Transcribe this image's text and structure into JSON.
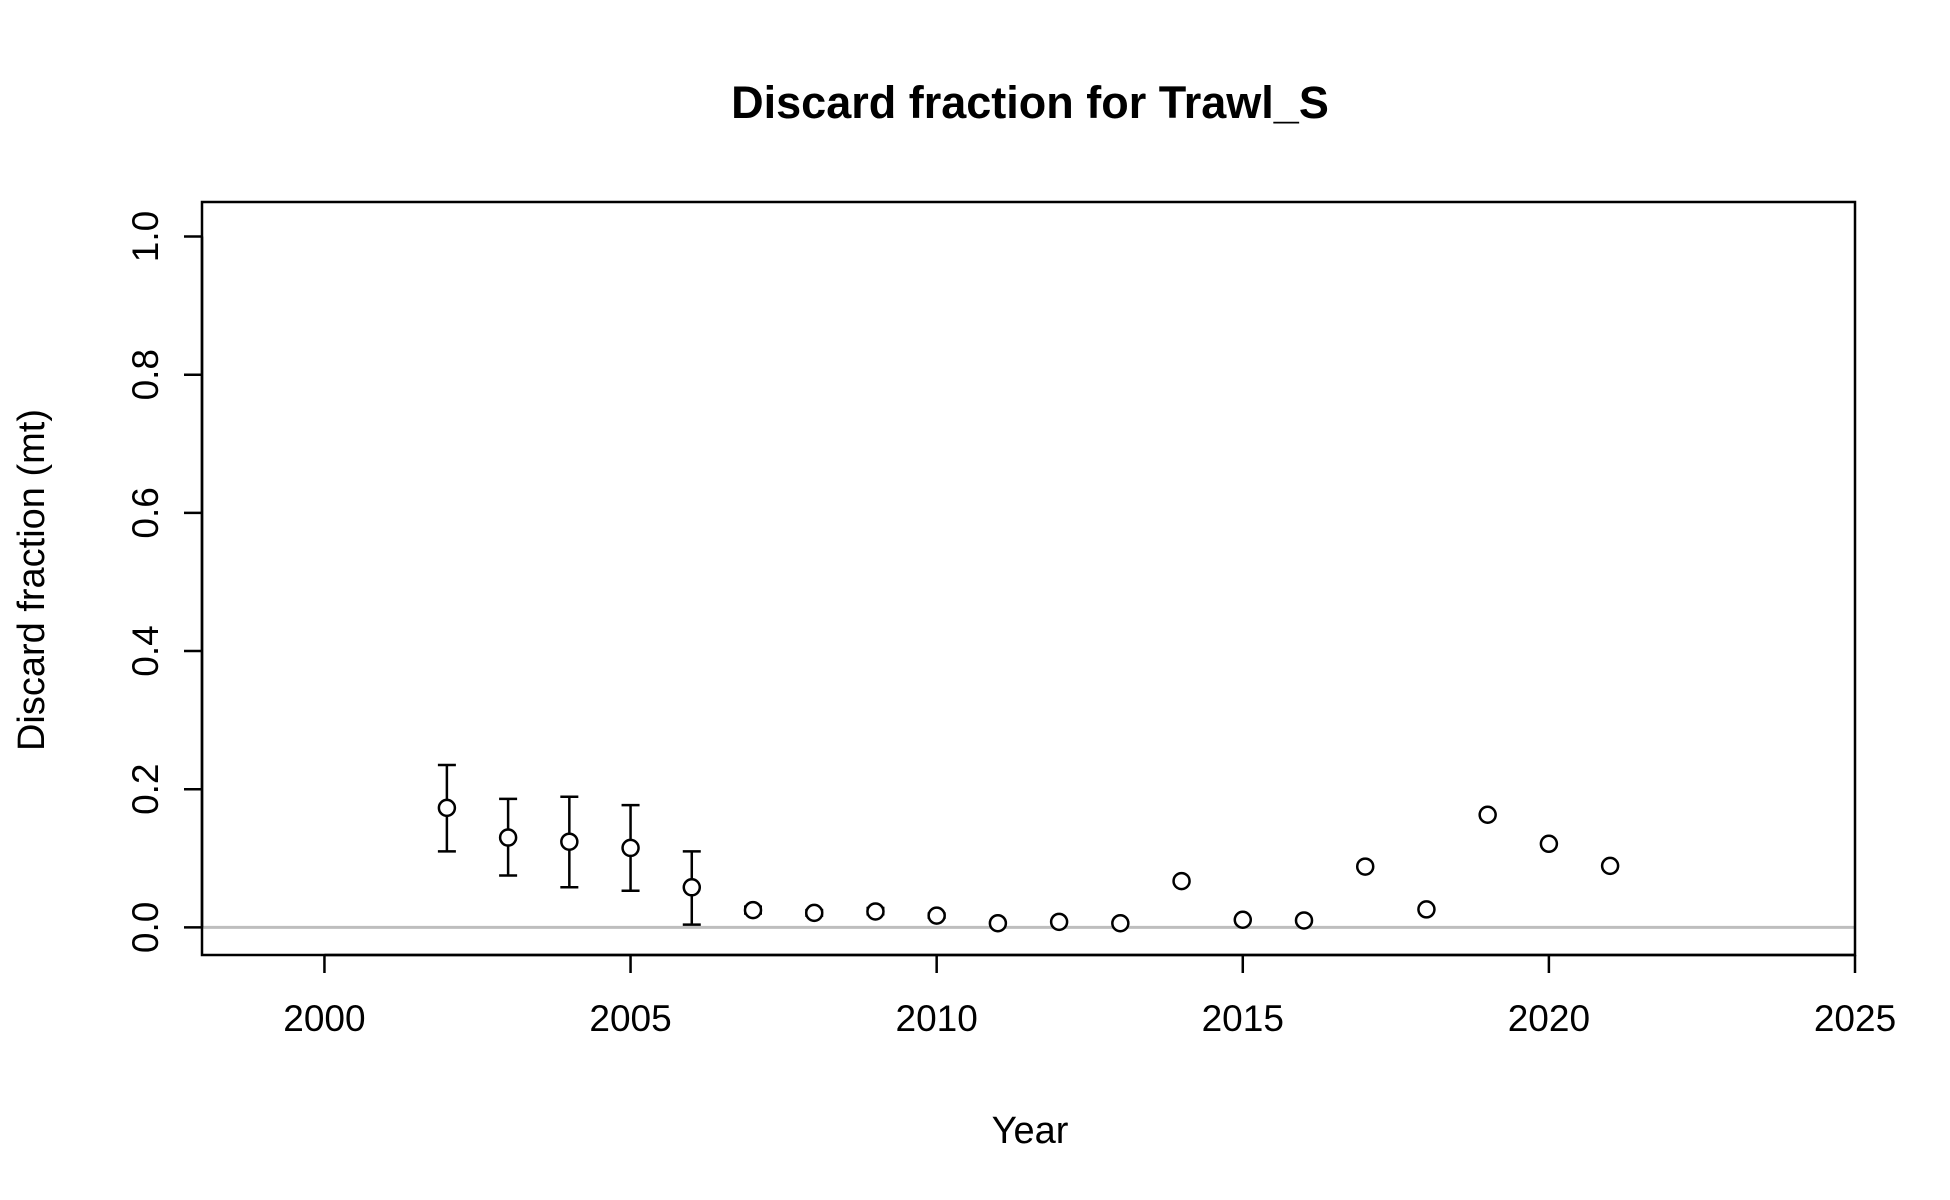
{
  "chart_data": {
    "type": "scatter",
    "title": "Discard fraction for Trawl_S",
    "xlabel": "Year",
    "ylabel": "Discard fraction (mt)",
    "xlim": [
      1998,
      2025
    ],
    "ylim": [
      -0.04,
      1.05
    ],
    "xticks": [
      2000,
      2005,
      2010,
      2015,
      2020,
      2025
    ],
    "yticks": [
      0.0,
      0.2,
      0.4,
      0.6,
      0.8,
      1.0
    ],
    "xtick_labels": [
      "2000",
      "2005",
      "2010",
      "2015",
      "2020",
      "2025"
    ],
    "ytick_labels": [
      "0.0",
      "0.2",
      "0.4",
      "0.6",
      "0.8",
      "1.0"
    ],
    "reference_line": {
      "y": 0.0,
      "color": "#bebebe"
    },
    "grid": false,
    "series": [
      {
        "x": [
          2002,
          2003,
          2004,
          2005,
          2006,
          2007,
          2008,
          2009,
          2010,
          2011,
          2012,
          2013,
          2014,
          2015,
          2016,
          2017,
          2018,
          2019,
          2020,
          2021
        ],
        "y": [
          0.173,
          0.13,
          0.124,
          0.115,
          0.058,
          0.025,
          0.021,
          0.023,
          0.017,
          0.006,
          0.008,
          0.006,
          0.067,
          0.011,
          0.01,
          0.088,
          0.026,
          0.163,
          0.121,
          0.089
        ],
        "lower": [
          0.11,
          0.075,
          0.058,
          0.053,
          0.004,
          0.02,
          0.017,
          0.019,
          0.014,
          null,
          null,
          null,
          null,
          null,
          null,
          null,
          null,
          null,
          null,
          null
        ],
        "upper": [
          0.235,
          0.186,
          0.189,
          0.177,
          0.11,
          0.03,
          0.025,
          0.028,
          0.02,
          null,
          null,
          null,
          null,
          null,
          null,
          null,
          null,
          null,
          null,
          null
        ]
      }
    ]
  }
}
